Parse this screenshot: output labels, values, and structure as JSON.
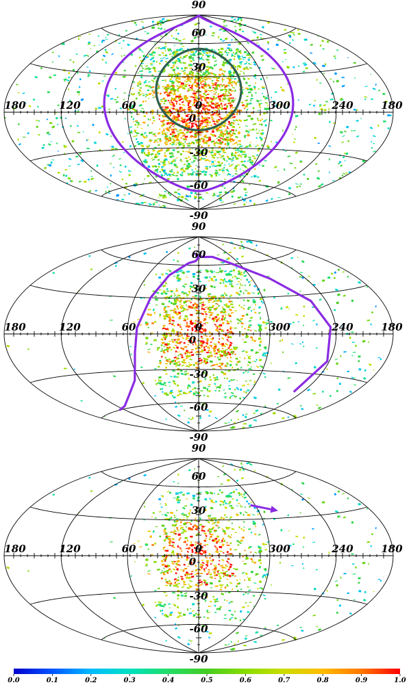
{
  "projection": "hammer-aitoff",
  "grid": {
    "lon_labels": [
      "180",
      "120",
      "60",
      "0",
      "300",
      "240",
      "180"
    ],
    "lat_labels": [
      "90",
      "60",
      "30",
      "0",
      "-30",
      "-60",
      "-90"
    ]
  },
  "panels": [
    {
      "id": "top",
      "curves": [
        {
          "color": "#2e5e4e",
          "shape": "circle",
          "center": [
            0,
            20
          ],
          "radius": 35
        },
        {
          "color": "#8a2be2",
          "shape": "circle",
          "center": [
            0,
            10
          ],
          "radius": 80
        }
      ],
      "arrow": null
    },
    {
      "id": "middle",
      "curves": [
        {
          "color": "#8a2be2",
          "shape": "path",
          "points": [
            [
              128,
              -60
            ],
            [
              110,
              -58
            ],
            [
              85,
              -50
            ],
            [
              65,
              -38
            ],
            [
              55,
              -15
            ],
            [
              52,
              5
            ],
            [
              45,
              30
            ],
            [
              35,
              50
            ],
            [
              15,
              62
            ],
            [
              5,
              64
            ],
            [
              1,
              67
            ],
            [
              6,
              71
            ],
            [
              1,
              69
            ],
            [
              -10,
              68
            ],
            [
              -25,
              68
            ],
            [
              -45,
              62
            ],
            [
              -80,
              45
            ],
            [
              -105,
              25
            ],
            [
              -115,
              5
            ],
            [
              -118,
              -20
            ],
            [
              -110,
              -45
            ]
          ]
        }
      ],
      "arrow": null
    },
    {
      "id": "bottom",
      "curves": [],
      "arrow": {
        "color": "#8a2be2",
        "from": [
          -55,
          42
        ],
        "to": [
          -80,
          36
        ]
      }
    }
  ],
  "colorbar": {
    "ticks": [
      "0.0",
      "0.1",
      "0.2",
      "0.3",
      "0.4",
      "0.5",
      "0.6",
      "0.7",
      "0.8",
      "0.9",
      "1.0"
    ],
    "stops": [
      "#0000cc",
      "#0055ff",
      "#00bbff",
      "#00e0c0",
      "#22dd66",
      "#44cc22",
      "#88dd00",
      "#ccdd00",
      "#ffbb00",
      "#ff7700",
      "#ff0000"
    ]
  }
}
